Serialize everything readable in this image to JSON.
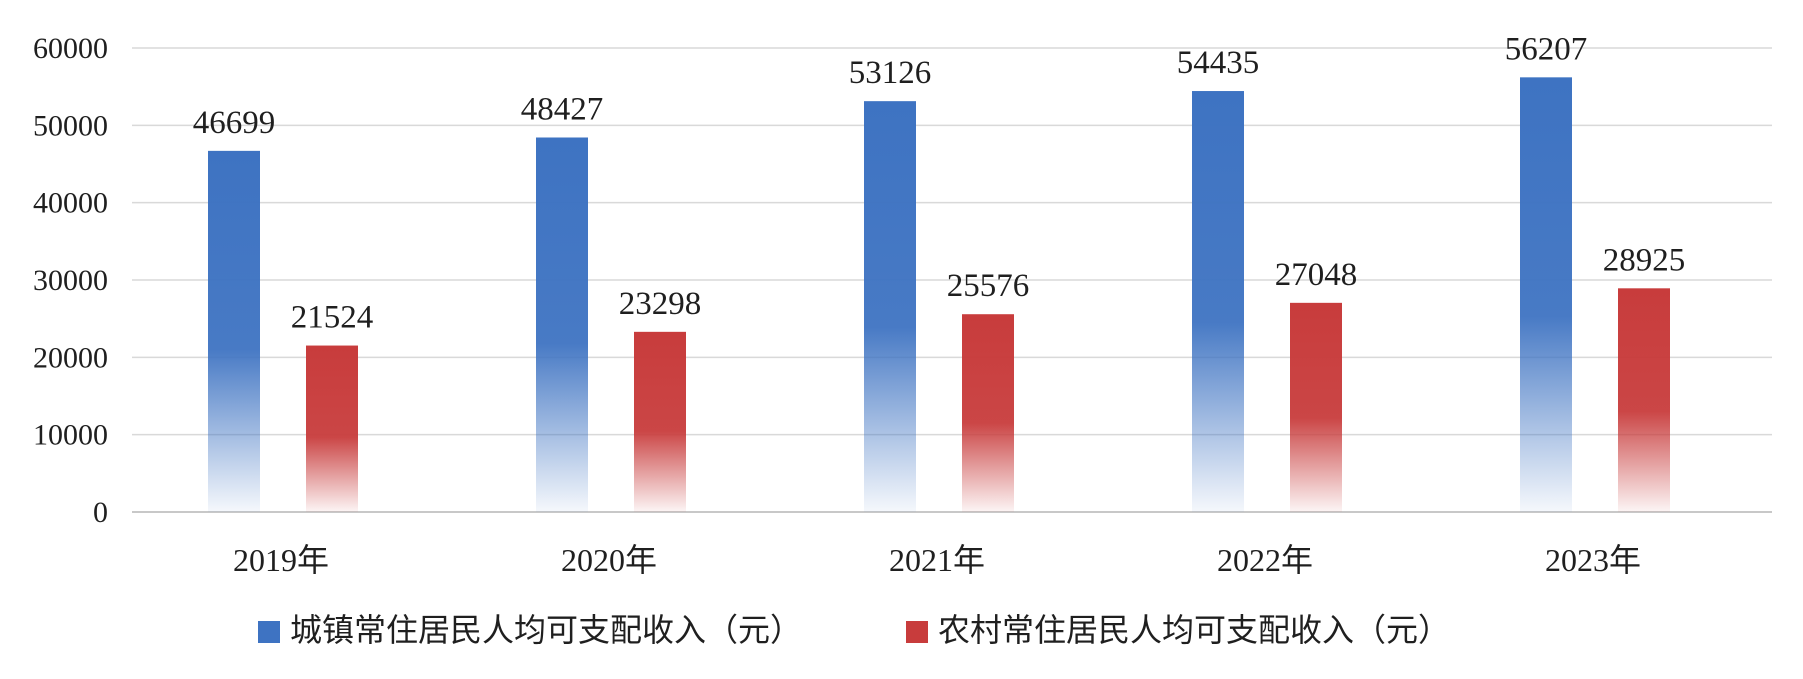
{
  "chart_data": {
    "type": "bar",
    "categories": [
      "2019年",
      "2020年",
      "2021年",
      "2022年",
      "2023年"
    ],
    "series": [
      {
        "name": "城镇常住居民人均可支配收入（元）",
        "values": [
          46699,
          48427,
          53126,
          54435,
          56207
        ],
        "color": "#3e73c2"
      },
      {
        "name": "农村常住居民人均可支配收入（元）",
        "values": [
          21524,
          23298,
          25576,
          27048,
          28925
        ],
        "color": "#c83c3c"
      }
    ],
    "ylim": [
      0,
      60000
    ],
    "yticks": [
      "0",
      "10000",
      "20000",
      "30000",
      "40000",
      "50000",
      "60000"
    ],
    "data_labels": true,
    "grid": true,
    "legend_position": "bottom",
    "title": "",
    "xlabel": "",
    "ylabel": ""
  }
}
